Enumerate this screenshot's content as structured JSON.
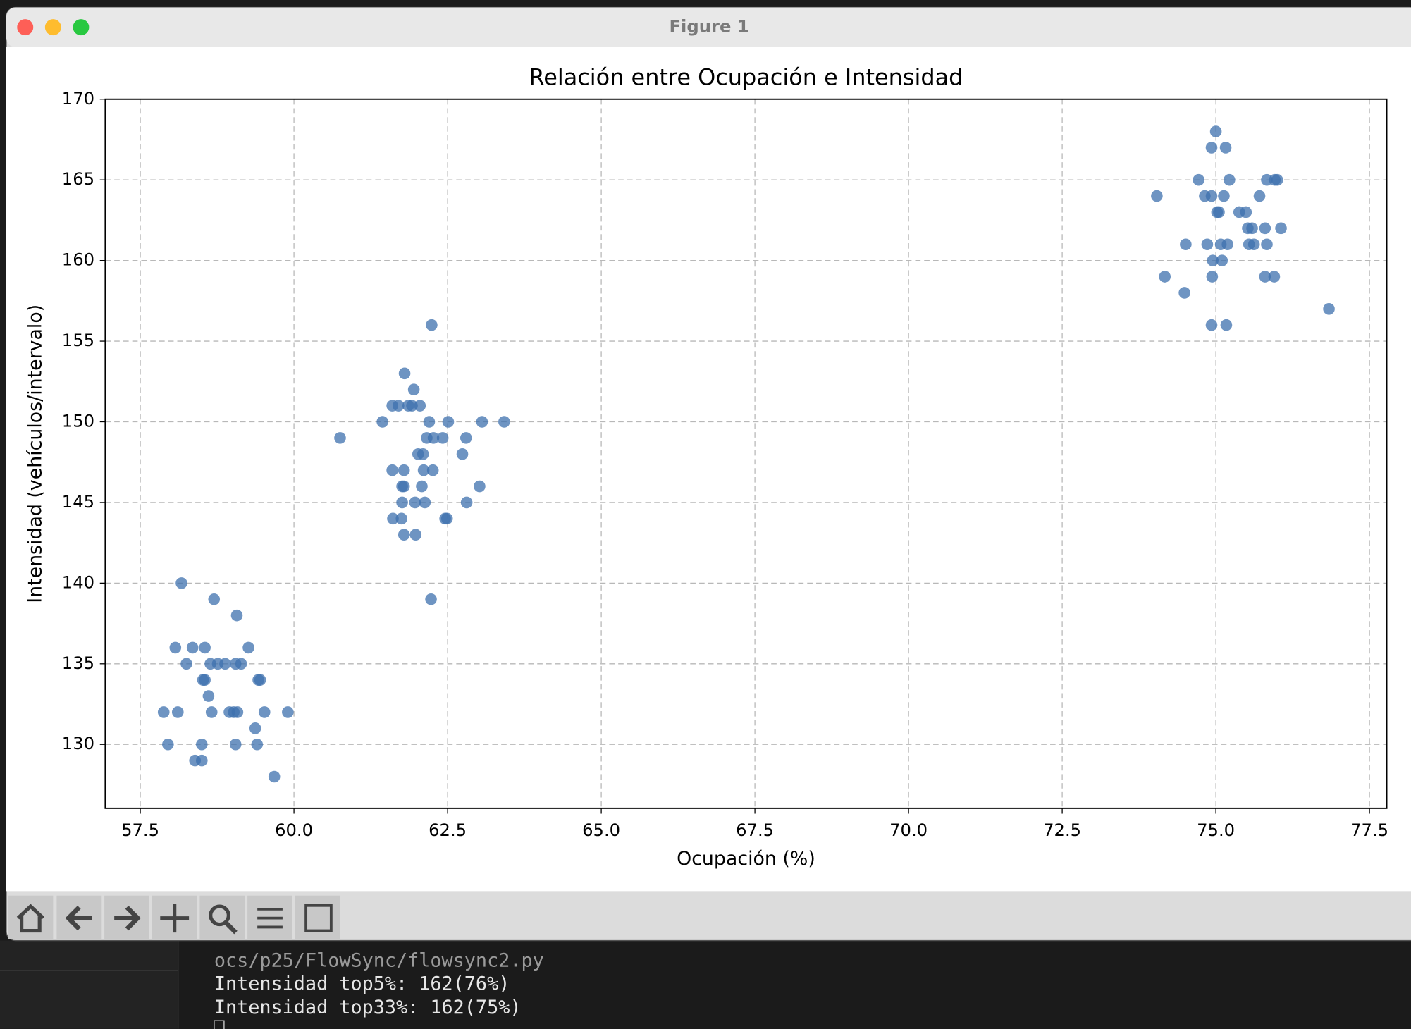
{
  "window": {
    "title": "Figure 1"
  },
  "terminal": {
    "lines": [
      "ocs/p25/FlowSync/flowsync2.py",
      "Intensidad top5%: 162(76%)",
      "Intensidad top33%: 162(75%)"
    ]
  },
  "chart_data": {
    "type": "scatter",
    "title": "Relación entre Ocupación e Intensidad",
    "x_label": "Ocupación (%)",
    "y_label": "Intensidad (vehículos/intervalo)",
    "xlim": [
      56.93,
      77.78
    ],
    "ylim": [
      126.04,
      170
    ],
    "xticks": [
      57.5,
      {
        "value": 60,
        "label": "60.0"
      },
      62.5,
      {
        "value": 65,
        "label": "65.0"
      },
      67.5,
      {
        "value": 70,
        "label": "70.0"
      },
      72.5,
      {
        "value": 75,
        "label": "75.0"
      },
      77.5
    ],
    "yticks": [
      130,
      135,
      140,
      145,
      150,
      155,
      160,
      165,
      170
    ],
    "grid": true,
    "series": [
      {
        "color": "#3d70ae",
        "x": [
          58.17,
          58.7,
          59.07,
          58.07,
          58.35,
          58.55,
          59.26,
          58.25,
          58.64,
          58.76,
          58.88,
          59.05,
          59.14,
          58.52,
          58.55,
          59.42,
          59.45,
          58.61,
          57.88,
          58.11,
          58.66,
          58.95,
          59.02,
          59.08,
          59.52,
          59.9,
          59.37,
          57.95,
          58.5,
          59.05,
          59.4,
          58.39,
          58.5,
          59.68,
          62.24,
          61.8,
          61.95,
          61.6,
          61.7,
          61.86,
          61.92,
          62.05,
          61.44,
          62.2,
          62.51,
          63.06,
          63.42,
          60.75,
          62.16,
          62.27,
          62.42,
          62.8,
          62.02,
          62.1,
          62.74,
          61.6,
          61.79,
          62.11,
          62.26,
          61.76,
          61.79,
          62.08,
          63.02,
          61.76,
          61.97,
          62.13,
          62.81,
          61.61,
          61.75,
          62.46,
          62.49,
          61.79,
          61.98,
          62.23,
          75.0,
          74.93,
          75.16,
          74.72,
          75.22,
          75.83,
          75.96,
          76.0,
          74.04,
          74.82,
          74.93,
          75.13,
          75.71,
          75.02,
          75.05,
          75.38,
          75.49,
          75.52,
          75.59,
          75.8,
          76.06,
          74.51,
          74.86,
          75.08,
          75.19,
          75.54,
          75.62,
          75.83,
          74.95,
          75.1,
          74.17,
          74.94,
          75.8,
          75.95,
          74.49,
          76.84,
          74.93,
          75.17
        ],
        "values": [
          140,
          139,
          138,
          136,
          136,
          136,
          136,
          135,
          135,
          135,
          135,
          135,
          135,
          134,
          134,
          134,
          134,
          133,
          132,
          132,
          132,
          132,
          132,
          132,
          132,
          132,
          131,
          130,
          130,
          130,
          130,
          129,
          129,
          128,
          156,
          153,
          152,
          151,
          151,
          151,
          151,
          151,
          150,
          150,
          150,
          150,
          150,
          149,
          149,
          149,
          149,
          149,
          148,
          148,
          148,
          147,
          147,
          147,
          147,
          146,
          146,
          146,
          146,
          145,
          145,
          145,
          145,
          144,
          144,
          144,
          144,
          143,
          143,
          139,
          168,
          167,
          167,
          165,
          165,
          165,
          165,
          165,
          164,
          164,
          164,
          164,
          164,
          163,
          163,
          163,
          163,
          162,
          162,
          162,
          162,
          161,
          161,
          161,
          161,
          161,
          161,
          161,
          160,
          160,
          159,
          159,
          159,
          159,
          158,
          157,
          156,
          156
        ]
      }
    ]
  }
}
